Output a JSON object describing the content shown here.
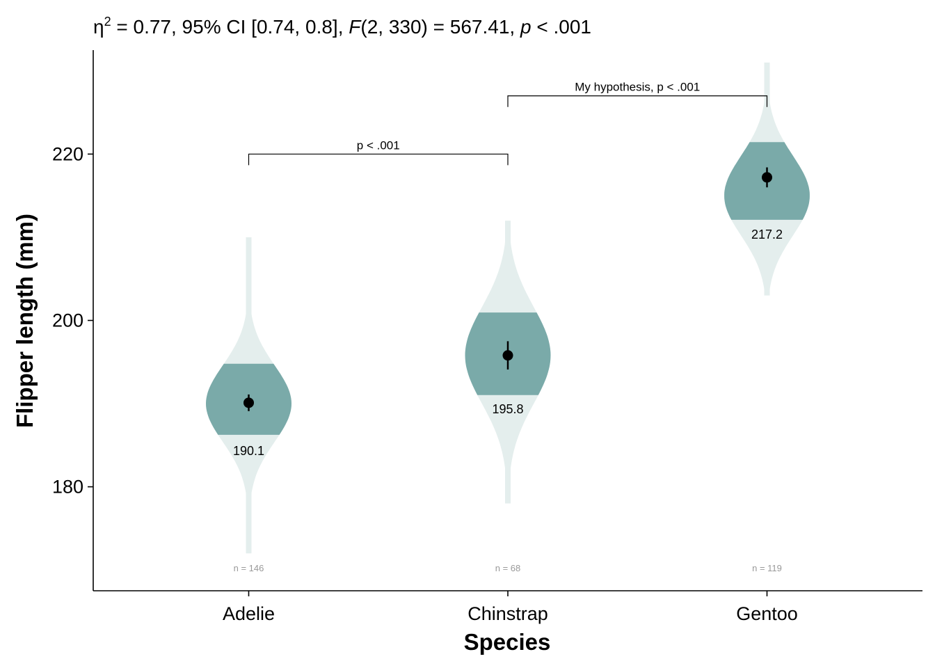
{
  "chart_data": {
    "type": "violin",
    "subtitle": {
      "eta": "η",
      "eta_power": "2",
      "part1": " = 0.77, 95% CI [0.74, 0.8], ",
      "f_label": "F",
      "part2": "(2, 330) = 567.41, ",
      "p_label": "p",
      "part3": " < .001"
    },
    "xlabel": "Species",
    "ylabel": "Flipper length (mm)",
    "ylim": [
      167.5,
      232.5
    ],
    "yticks": [
      180,
      200,
      220
    ],
    "categories": [
      "Adelie",
      "Chinstrap",
      "Gentoo"
    ],
    "groups": [
      {
        "name": "Adelie",
        "n_label": "n = 146",
        "mean": 190.1,
        "mean_label": "190.1",
        "ci": [
          189.1,
          191.1
        ],
        "min": 172,
        "max": 210,
        "q1": 186,
        "q3": 195,
        "peak": 190,
        "spread": 4.6,
        "width": 0.33
      },
      {
        "name": "Chinstrap",
        "n_label": "n = 68",
        "mean": 195.8,
        "mean_label": "195.8",
        "ci": [
          194.1,
          197.5
        ],
        "min": 178,
        "max": 212,
        "q1": 191,
        "q3": 201,
        "peak": 195.8,
        "spread": 5.8,
        "width": 0.33
      },
      {
        "name": "Gentoo",
        "n_label": "n = 119",
        "mean": 217.2,
        "mean_label": "217.2",
        "ci": [
          216.0,
          218.4
        ],
        "min": 203,
        "max": 231,
        "q1": 212,
        "q3": 221.5,
        "peak": 215,
        "spread": 4.8,
        "width": 0.33
      }
    ],
    "comparisons": [
      {
        "from": "Adelie",
        "to": "Chinstrap",
        "label": "p < .001",
        "y": 220
      },
      {
        "from": "Chinstrap",
        "to": "Gentoo",
        "label": "My hypothesis, p < .001",
        "y": 227
      }
    ],
    "colors": {
      "violin_light": "#e4eeed",
      "violin_dark": "#7aaaa9",
      "point": "#000000",
      "n_text": "#999999"
    }
  }
}
